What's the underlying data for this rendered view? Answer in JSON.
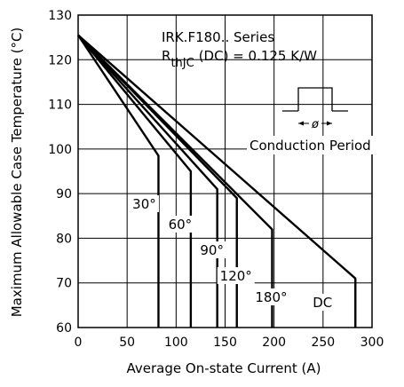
{
  "chart_data": {
    "type": "line",
    "xlabel": "Average On-state Current (A)",
    "ylabel": "Maximum Allowable Case Temperature (°C)",
    "xlim": [
      0,
      300
    ],
    "ylim": [
      60,
      130
    ],
    "xticks": [
      0,
      50,
      100,
      150,
      200,
      250,
      300
    ],
    "yticks": [
      60,
      70,
      80,
      90,
      100,
      110,
      120,
      130
    ],
    "grid": true,
    "annotation": {
      "series_title": "IRK.F180.. Series",
      "rth_prefix": "R",
      "rth_sub": "thJC",
      "rth_suffix": "(DC) = 0.125 K/W",
      "conduction_label": "Conduction Period",
      "phi_symbol": "ø"
    },
    "series": [
      {
        "name": "30°",
        "x": [
          0,
          82,
          82
        ],
        "y": [
          125.5,
          98.5,
          60
        ]
      },
      {
        "name": "60°",
        "x": [
          0,
          115,
          115
        ],
        "y": [
          125.5,
          95,
          60
        ]
      },
      {
        "name": "90°",
        "x": [
          0,
          142,
          142
        ],
        "y": [
          125.5,
          91,
          60
        ]
      },
      {
        "name": "120°",
        "x": [
          0,
          162,
          162
        ],
        "y": [
          125.5,
          89,
          60
        ]
      },
      {
        "name": "180°",
        "x": [
          0,
          198,
          198
        ],
        "y": [
          125.5,
          82,
          60
        ]
      },
      {
        "name": "DC",
        "x": [
          0,
          283,
          283
        ],
        "y": [
          125.5,
          71,
          60
        ]
      }
    ]
  }
}
